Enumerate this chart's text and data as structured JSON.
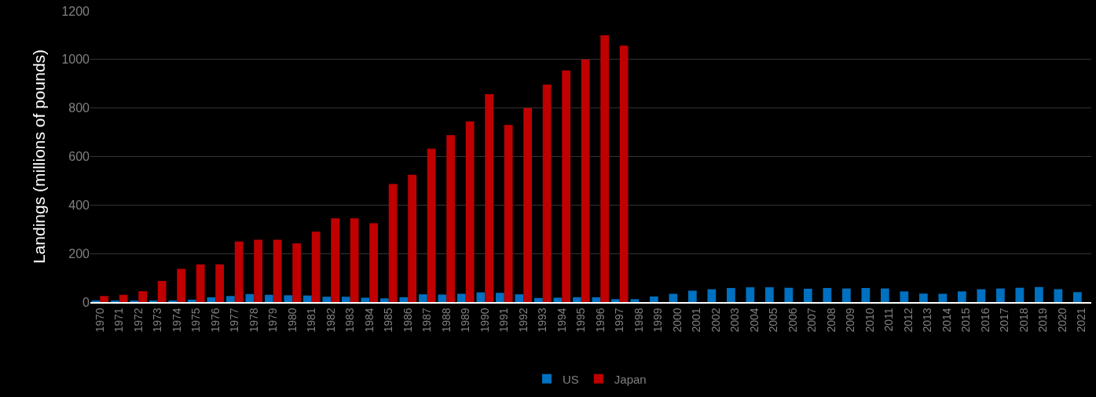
{
  "chart_data": {
    "type": "bar",
    "ylabel": "Landings (millions of pounds)",
    "categories": [
      "1970",
      "1971",
      "1972",
      "1973",
      "1974",
      "1975",
      "1976",
      "1977",
      "1978",
      "1979",
      "1980",
      "1981",
      "1982",
      "1983",
      "1984",
      "1985",
      "1986",
      "1987",
      "1988",
      "1989",
      "1990",
      "1991",
      "1992",
      "1993",
      "1994",
      "1995",
      "1996",
      "1997",
      "1998",
      "1999",
      "2000",
      "2001",
      "2002",
      "2003",
      "2004",
      "2005",
      "2006",
      "2007",
      "2008",
      "2009",
      "2010",
      "2011",
      "2012",
      "2013",
      "2014",
      "2015",
      "2016",
      "2017",
      "2018",
      "2019",
      "2020",
      "2021"
    ],
    "series": [
      {
        "name": "US",
        "color": "#0070c0",
        "values": [
          5,
          4,
          5,
          4,
          5,
          10,
          20,
          25,
          33,
          30,
          28,
          27,
          22,
          22,
          18,
          15,
          20,
          32,
          31,
          34,
          40,
          38,
          32,
          17,
          18,
          20,
          20,
          12,
          12,
          23,
          34,
          47,
          53,
          58,
          61,
          61,
          59,
          55,
          58,
          56,
          58,
          56,
          44,
          35,
          34,
          44,
          53,
          56,
          59,
          62,
          53,
          41
        ]
      },
      {
        "name": "Japan",
        "color": "#c00000",
        "values": [
          25,
          30,
          45,
          87,
          137,
          155,
          155,
          250,
          257,
          257,
          242,
          290,
          345,
          345,
          325,
          487,
          525,
          632,
          688,
          745,
          857,
          730,
          800,
          897,
          955,
          1000,
          1100,
          1057,
          null,
          null,
          null,
          null,
          null,
          null,
          null,
          null,
          null,
          null,
          null,
          null,
          null,
          null,
          null,
          null,
          null,
          null,
          null,
          null,
          null,
          null,
          null,
          null
        ]
      }
    ],
    "ylim": [
      0,
      1200
    ],
    "yticks": [
      0,
      200,
      400,
      600,
      800,
      1000,
      1200
    ],
    "grid": "y",
    "legend": "bottom"
  }
}
